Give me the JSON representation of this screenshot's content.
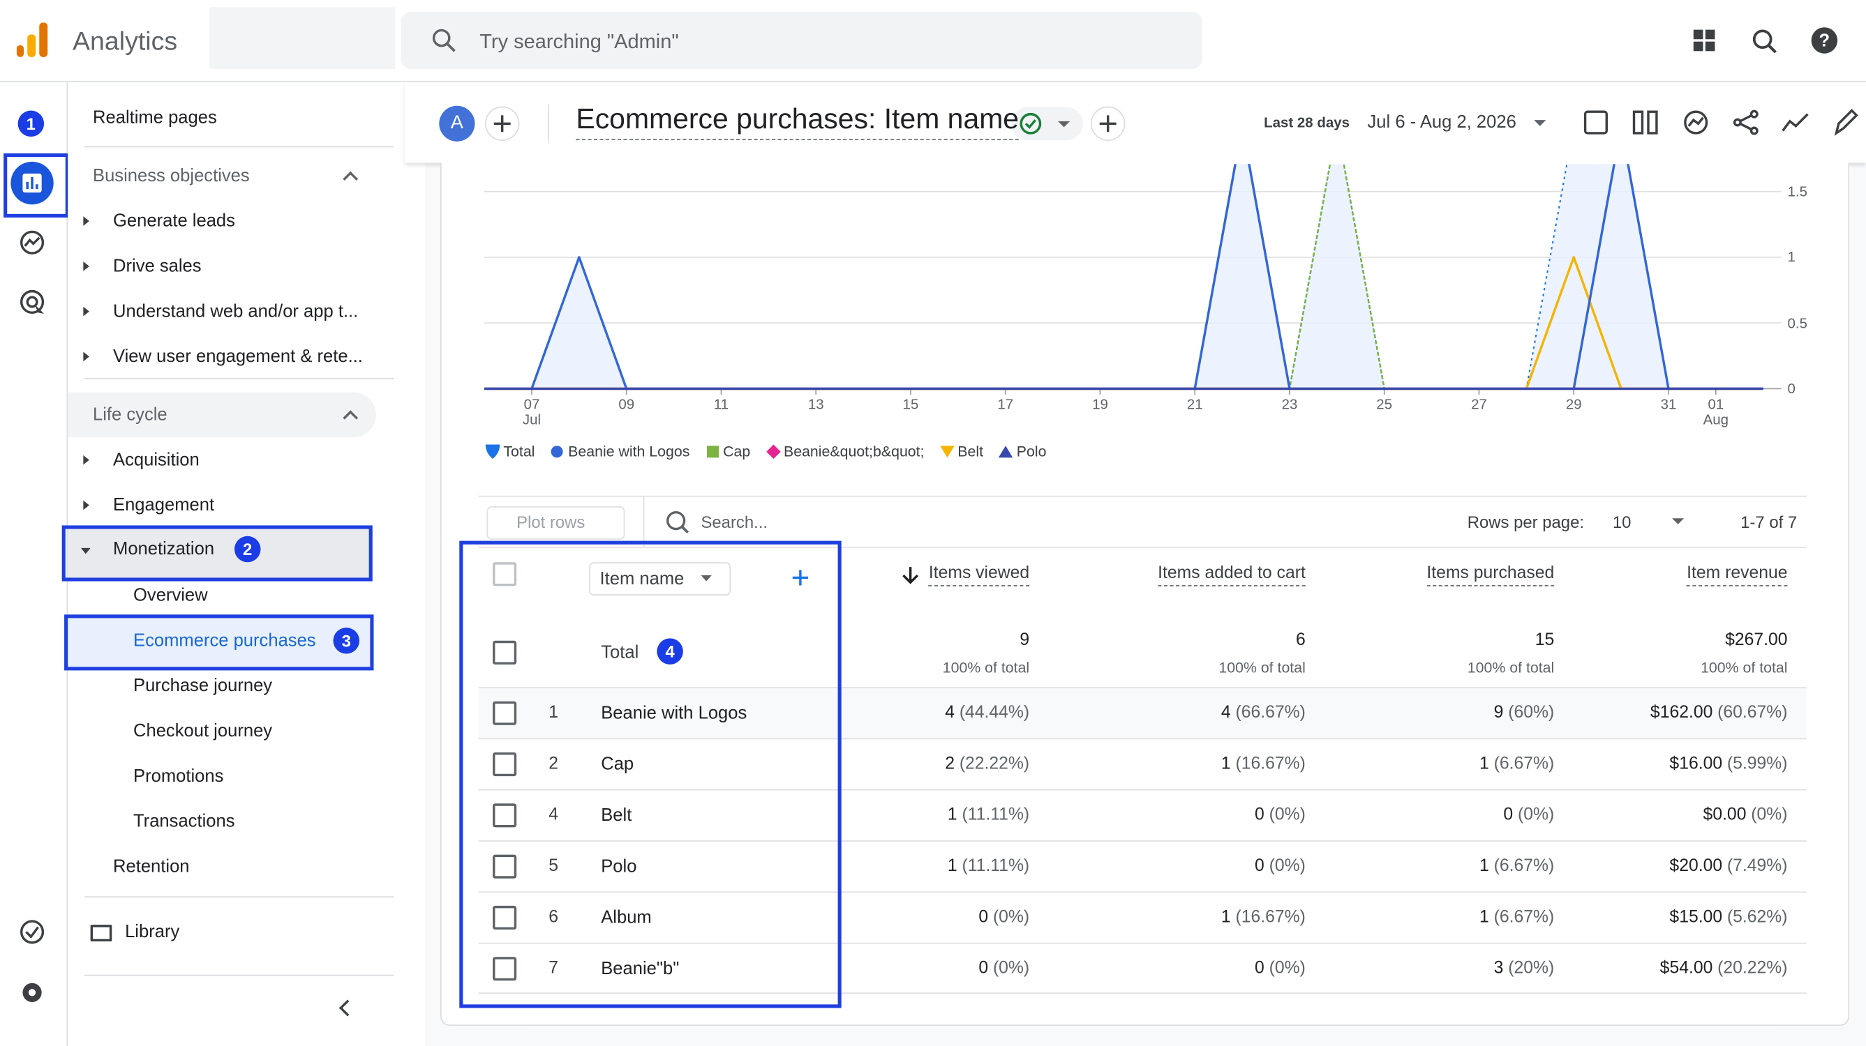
{
  "header": {
    "app_name": "Analytics",
    "search_placeholder": "Try searching \"Admin\""
  },
  "left_rail": {
    "badge": "1"
  },
  "sidebar": {
    "realtime": "Realtime pages",
    "sections": [
      {
        "title": "Business objectives",
        "items": [
          "Generate leads",
          "Drive sales",
          "Understand web and/or app t...",
          "View user engagement & rete..."
        ]
      },
      {
        "title": "Life cycle",
        "items": [
          "Acquisition",
          "Engagement"
        ]
      }
    ],
    "monetization": "Monetization",
    "monetization_badge": "2",
    "sub_items": [
      "Overview",
      "Ecommerce purchases",
      "Purchase journey",
      "Checkout journey",
      "Promotions",
      "Transactions"
    ],
    "active_badge": "3",
    "retention": "Retention",
    "library": "Library"
  },
  "report": {
    "avatar": "A",
    "title": "Ecommerce purchases: Item name",
    "date_label": "Last 28 days",
    "date_range": "Jul 6 - Aug 2, 2026"
  },
  "chart": {
    "type": "line",
    "categories": [
      null,
      "07\nJul",
      null,
      "09",
      null,
      "11",
      null,
      "13",
      null,
      "15",
      null,
      "17",
      null,
      "19",
      null,
      "21",
      null,
      "23",
      null,
      "25",
      null,
      "27",
      null,
      "29",
      null,
      "31",
      "01\nAug",
      null
    ],
    "ylim": [
      0,
      1.7
    ],
    "yticks": [
      0,
      0.5,
      1,
      1.5
    ],
    "grid": true,
    "series": [
      {
        "name": "Total",
        "color": "#1a73e8",
        "marker": "pin",
        "values": [
          0,
          0,
          1,
          0,
          0,
          0,
          0,
          0,
          0,
          0,
          0,
          0,
          0,
          0,
          0,
          0,
          2,
          0,
          2,
          0,
          0,
          0,
          0,
          2,
          2,
          0,
          0,
          0
        ]
      },
      {
        "name": "Beanie with Logos",
        "color": "#3367d6",
        "marker": "circle",
        "values": [
          0,
          0,
          1,
          0,
          0,
          0,
          0,
          0,
          0,
          0,
          0,
          0,
          0,
          0,
          0,
          0,
          2,
          0,
          0,
          0,
          0,
          0,
          0,
          0,
          2,
          0,
          0,
          0
        ]
      },
      {
        "name": "Cap",
        "color": "#7cb342",
        "marker": "square",
        "values": [
          0,
          0,
          0,
          0,
          0,
          0,
          0,
          0,
          0,
          0,
          0,
          0,
          0,
          0,
          0,
          0,
          0,
          0,
          2,
          0,
          0,
          0,
          0,
          0,
          0,
          0,
          0,
          0
        ]
      },
      {
        "name": "Beanie&quot;b&quot;",
        "color": "#e52592",
        "marker": "diamond",
        "values": [
          0,
          0,
          0,
          0,
          0,
          0,
          0,
          0,
          0,
          0,
          0,
          0,
          0,
          0,
          0,
          0,
          0,
          0,
          0,
          0,
          0,
          0,
          0,
          0,
          0,
          0,
          0,
          0
        ]
      },
      {
        "name": "Belt",
        "color": "#f4b400",
        "marker": "triangle-down",
        "values": [
          0,
          0,
          0,
          0,
          0,
          0,
          0,
          0,
          0,
          0,
          0,
          0,
          0,
          0,
          0,
          0,
          0,
          0,
          0,
          0,
          0,
          0,
          0,
          1,
          0,
          0,
          0,
          0
        ]
      },
      {
        "name": "Polo",
        "color": "#3949ab",
        "marker": "triangle",
        "values": [
          0,
          0,
          0,
          0,
          0,
          0,
          0,
          0,
          0,
          0,
          0,
          0,
          0,
          0,
          0,
          0,
          0,
          0,
          0,
          0,
          0,
          0,
          0,
          0,
          0,
          0,
          0,
          0
        ]
      }
    ]
  },
  "table": {
    "plot_rows": "Plot rows",
    "search_placeholder": "Search...",
    "rows_per_page_label": "Rows per page:",
    "rows_per_page": "10",
    "pagination": "1-7 of 7",
    "dimension": "Item name",
    "columns": [
      "Items viewed",
      "Items added to cart",
      "Items purchased",
      "Item revenue"
    ],
    "total": {
      "label": "Total",
      "badge": "4",
      "values": [
        "9",
        "6",
        "15",
        "$267.00"
      ],
      "subs": [
        "100% of total",
        "100% of total",
        "100% of total",
        "100% of total"
      ]
    },
    "rows": [
      {
        "rank": "1",
        "name": "Beanie with Logos",
        "cells": [
          [
            "4",
            "(44.44%)"
          ],
          [
            "4",
            "(66.67%)"
          ],
          [
            "9",
            "(60%)"
          ],
          [
            "$162.00",
            "(60.67%)"
          ]
        ]
      },
      {
        "rank": "2",
        "name": "Cap",
        "cells": [
          [
            "2",
            "(22.22%)"
          ],
          [
            "1",
            "(16.67%)"
          ],
          [
            "1",
            "(6.67%)"
          ],
          [
            "$16.00",
            "(5.99%)"
          ]
        ]
      },
      {
        "rank": "4",
        "name": "Belt",
        "cells": [
          [
            "1",
            "(11.11%)"
          ],
          [
            "0",
            "(0%)"
          ],
          [
            "0",
            "(0%)"
          ],
          [
            "$0.00",
            "(0%)"
          ]
        ]
      },
      {
        "rank": "5",
        "name": "Polo",
        "cells": [
          [
            "1",
            "(11.11%)"
          ],
          [
            "0",
            "(0%)"
          ],
          [
            "1",
            "(6.67%)"
          ],
          [
            "$20.00",
            "(7.49%)"
          ]
        ]
      },
      {
        "rank": "6",
        "name": "Album",
        "cells": [
          [
            "0",
            "(0%)"
          ],
          [
            "1",
            "(16.67%)"
          ],
          [
            "1",
            "(6.67%)"
          ],
          [
            "$15.00",
            "(5.62%)"
          ]
        ]
      },
      {
        "rank": "7",
        "name": "Beanie\"b\"",
        "cells": [
          [
            "0",
            "(0%)"
          ],
          [
            "0",
            "(0%)"
          ],
          [
            "3",
            "(20%)"
          ],
          [
            "$54.00",
            "(20.22%)"
          ]
        ]
      }
    ]
  }
}
